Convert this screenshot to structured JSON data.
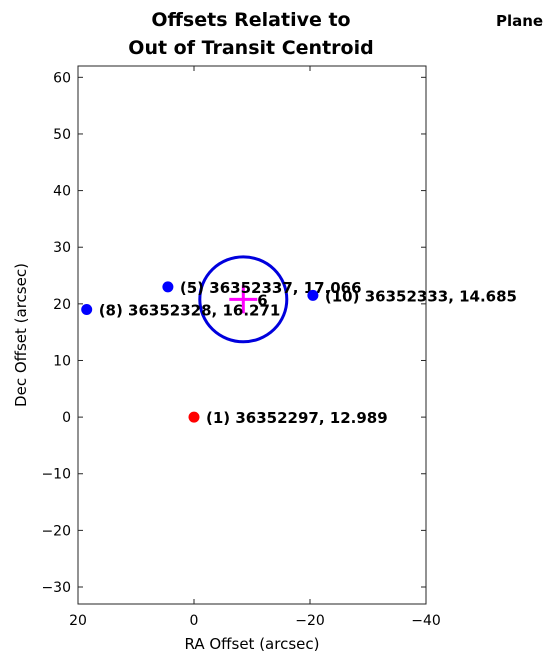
{
  "chart_data": {
    "type": "scatter",
    "title": [
      "Offsets Relative to",
      "Out of Transit Centroid"
    ],
    "cut_title": "Plane",
    "xlabel": "RA Offset (arcsec)",
    "ylabel": "Dec Offset (arcsec)",
    "xlim": [
      20,
      -40
    ],
    "ylim": [
      -33,
      62
    ],
    "x_reversed": true,
    "grid": false,
    "xticks": [
      20,
      0,
      -20,
      -40
    ],
    "yticks": [
      -30,
      -20,
      -10,
      0,
      10,
      20,
      30,
      40,
      50,
      60
    ],
    "points": [
      {
        "x": 0,
        "y": 0,
        "label": "(1) 36352297, 12.989",
        "color": "#ff0000"
      },
      {
        "x": 4.5,
        "y": 23,
        "label": "(5) 36352337, 17.066",
        "color": "#0000ff"
      },
      {
        "x": 18.5,
        "y": 19,
        "label": "(8) 36352328, 16.271",
        "color": "#0000ff"
      },
      {
        "x": -20.5,
        "y": 21.5,
        "label": "(10) 36352333, 14.685",
        "color": "#0000ff"
      }
    ],
    "centroid": {
      "x": -8.5,
      "y": 20.8,
      "label": "6",
      "color": "#ff00ff"
    },
    "circle": {
      "x": -8.5,
      "y": 20.8,
      "radius": 7.5,
      "color": "#0000dd"
    }
  }
}
